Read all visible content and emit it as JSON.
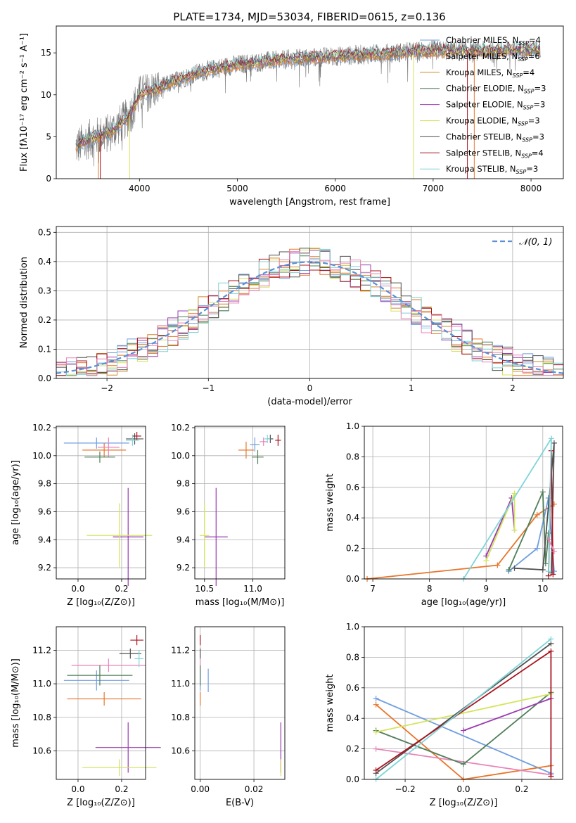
{
  "figure": {
    "title": "PLATE=1734, MJD=53034, FIBERID=0615, z=0.136"
  },
  "colors": {
    "Chabrier MILES": "#6f9ee0",
    "Salpeter MILES": "#e8752a",
    "Kroupa MILES": "#d2892c",
    "Chabrier ELODIE": "#4f7f58",
    "Salpeter ELODIE": "#9a3bb0",
    "Kroupa ELODIE": "#d5e45b",
    "Chabrier STELIB": "#505050",
    "Salpeter STELIB": "#a8141e",
    "Kroupa STELIB": "#7fd4d8",
    "pink": "#e882b8",
    "gaussian": "#5b8fd6"
  },
  "chart_data": [
    {
      "id": "spectrum",
      "type": "line",
      "title": "PLATE=1734, MJD=53034, FIBERID=0615, z=0.136",
      "xlabel": "wavelength [Angstrom, rest frame]",
      "ylabel": "Flux [fλ10⁻¹⁷ erg cm⁻² s⁻¹ A⁻¹]",
      "xlim": [
        3150,
        8330
      ],
      "ylim": [
        0,
        18.2
      ],
      "xticks": [
        4000,
        5000,
        6000,
        7000,
        8000
      ],
      "yticks": [
        0,
        5,
        10,
        15
      ],
      "grid": false,
      "legend_position": "right",
      "legend": [
        {
          "name": "Chabrier MILES, N",
          "sub": "SSP",
          "suffix": "=4",
          "color": "#6f9ee0"
        },
        {
          "name": "Salpeter MILES, N",
          "sub": "SSP",
          "suffix": "=6",
          "color": "#e8752a"
        },
        {
          "name": "Kroupa MILES, N",
          "sub": "SSP",
          "suffix": "=4",
          "color": "#d2892c"
        },
        {
          "name": "Chabrier ELODIE, N",
          "sub": "SSP",
          "suffix": "=3",
          "color": "#4f7f58"
        },
        {
          "name": "Salpeter ELODIE, N",
          "sub": "SSP",
          "suffix": "=3",
          "color": "#9a3bb0"
        },
        {
          "name": "Kroupa ELODIE, N",
          "sub": "SSP",
          "suffix": "=3",
          "color": "#d5e45b"
        },
        {
          "name": "Chabrier STELIB, N",
          "sub": "SSP",
          "suffix": "=3",
          "color": "#505050"
        },
        {
          "name": "Salpeter STELIB, N",
          "sub": "SSP",
          "suffix": "=4",
          "color": "#a8141e"
        },
        {
          "name": "Kroupa STELIB, N",
          "sub": "SSP",
          "suffix": "=3",
          "color": "#7fd4d8"
        }
      ],
      "continuum": [
        [
          3350,
          3.8
        ],
        [
          3500,
          4.8
        ],
        [
          3700,
          5.5
        ],
        [
          3900,
          7.5
        ],
        [
          4000,
          10.0
        ],
        [
          4200,
          10.8
        ],
        [
          4400,
          11.8
        ],
        [
          4600,
          12.6
        ],
        [
          4800,
          13.2
        ],
        [
          5000,
          13.6
        ],
        [
          5300,
          14.0
        ],
        [
          5600,
          14.3
        ],
        [
          6000,
          14.6
        ],
        [
          6300,
          14.8
        ],
        [
          6600,
          15.0
        ],
        [
          7000,
          15.3
        ],
        [
          7400,
          15.2
        ],
        [
          7700,
          15.3
        ],
        [
          8100,
          15.4
        ]
      ],
      "range_end": [
        {
          "color": "#e8752a",
          "start": 3580,
          "end": 7420
        },
        {
          "color": "#d5e45b",
          "start": 3900,
          "end": 6800
        },
        {
          "color": "#a8141e",
          "start": 3600,
          "end": 7350
        }
      ]
    },
    {
      "id": "residuals",
      "type": "histogram",
      "xlabel": "(data-model)/error",
      "ylabel": "Normed distribution",
      "xlim": [
        -2.5,
        2.5
      ],
      "ylim": [
        0,
        0.52
      ],
      "xticks": [
        -2,
        -1,
        0,
        1,
        2
      ],
      "yticks": [
        0.0,
        0.1,
        0.2,
        0.3,
        0.4,
        0.5
      ],
      "grid": true,
      "legend": "𝒩(0, 1)",
      "legend_position": "top-right",
      "bin_width": 0.1,
      "bin_start": -2.5,
      "series_colors": [
        "#6f9ee0",
        "#e8752a",
        "#d2892c",
        "#4f7f58",
        "#9a3bb0",
        "#d5e45b",
        "#505050",
        "#a8141e",
        "#7fd4d8",
        "#e882b8"
      ]
    },
    {
      "id": "age-vs-Z",
      "type": "errorbar",
      "xlabel": "Z [log₁₀(Z/Z⊙)]",
      "ylabel": "age  [log₁₀(age/yr)]",
      "xlim": [
        -0.1,
        0.31
      ],
      "ylim": [
        9.12,
        10.21
      ],
      "xticks": [
        0.0,
        0.2
      ],
      "yticks": [
        9.2,
        9.4,
        9.6,
        9.8,
        10.0,
        10.2
      ],
      "points": [
        {
          "x": 0.085,
          "y": 10.09,
          "xe": 0.15,
          "ye": 0.04,
          "color": "#6f9ee0"
        },
        {
          "x": 0.12,
          "y": 10.04,
          "xe": 0.1,
          "ye": 0.05,
          "color": "#e8752a"
        },
        {
          "x": 0.14,
          "y": 10.06,
          "xe": 0.05,
          "ye": 0.07,
          "color": "#e882b8"
        },
        {
          "x": 0.1,
          "y": 9.99,
          "xe": 0.07,
          "ye": 0.04,
          "color": "#4f7f58"
        },
        {
          "x": 0.23,
          "y": 9.42,
          "xe": 0.07,
          "ye": 0.35,
          "color": "#9a3bb0"
        },
        {
          "x": 0.19,
          "y": 9.43,
          "xe": 0.15,
          "ye": 0.23,
          "color": "#d5e45b"
        },
        {
          "x": 0.26,
          "y": 10.12,
          "xe": 0.04,
          "ye": 0.04,
          "color": "#505050"
        },
        {
          "x": 0.27,
          "y": 10.14,
          "xe": 0.02,
          "ye": 0.03,
          "color": "#a8141e"
        },
        {
          "x": 0.25,
          "y": 10.11,
          "xe": 0.03,
          "ye": 0.04,
          "color": "#7fd4d8"
        }
      ]
    },
    {
      "id": "age-vs-mass",
      "type": "errorbar",
      "xlabel": "mass [log₁₀(M/M⊙)]",
      "ylabel": "",
      "xlim": [
        10.4,
        11.33
      ],
      "ylim": [
        9.12,
        10.21
      ],
      "xticks": [
        10.5,
        11.0
      ],
      "yticks": [
        9.2,
        9.4,
        9.6,
        9.8,
        10.0,
        10.2
      ],
      "points": [
        {
          "x": 11.02,
          "y": 10.08,
          "xe": 0.05,
          "ye": 0.05,
          "color": "#6f9ee0"
        },
        {
          "x": 10.93,
          "y": 10.04,
          "xe": 0.08,
          "ye": 0.06,
          "color": "#e8752a"
        },
        {
          "x": 11.11,
          "y": 10.1,
          "xe": 0.04,
          "ye": 0.03,
          "color": "#e882b8"
        },
        {
          "x": 11.05,
          "y": 9.99,
          "xe": 0.06,
          "ye": 0.05,
          "color": "#4f7f58"
        },
        {
          "x": 10.62,
          "y": 9.42,
          "xe": 0.12,
          "ye": 0.35,
          "color": "#9a3bb0"
        },
        {
          "x": 10.5,
          "y": 9.43,
          "xe": 0.05,
          "ye": 0.23,
          "color": "#d5e45b"
        },
        {
          "x": 11.18,
          "y": 10.12,
          "xe": 0.03,
          "ye": 0.03,
          "color": "#505050"
        },
        {
          "x": 11.26,
          "y": 10.11,
          "xe": 0.03,
          "ye": 0.04,
          "color": "#a8141e"
        },
        {
          "x": 11.15,
          "y": 10.12,
          "xe": 0.03,
          "ye": 0.03,
          "color": "#7fd4d8"
        }
      ]
    },
    {
      "id": "massweight-vs-age",
      "type": "line",
      "xlabel": "age  [log₁₀(age/yr)]",
      "ylabel": "mass weight",
      "xlim": [
        6.85,
        10.35
      ],
      "ylim": [
        0,
        1.0
      ],
      "xticks": [
        7,
        8,
        9,
        10
      ],
      "yticks": [
        0.0,
        0.2,
        0.4,
        0.6,
        0.8,
        1.0
      ],
      "grid": true,
      "series": [
        {
          "color": "#e8752a",
          "points": [
            [
              6.9,
              0.0
            ],
            [
              9.2,
              0.09
            ],
            [
              9.9,
              0.42
            ],
            [
              10.2,
              0.49
            ]
          ]
        },
        {
          "color": "#9a3bb0",
          "points": [
            [
              9.0,
              0.15
            ],
            [
              9.45,
              0.53
            ],
            [
              9.5,
              0.32
            ]
          ]
        },
        {
          "color": "#d5e45b",
          "points": [
            [
              9.0,
              0.12
            ],
            [
              9.5,
              0.56
            ],
            [
              9.5,
              0.32
            ]
          ]
        },
        {
          "color": "#6f9ee0",
          "points": [
            [
              9.4,
              0.05
            ],
            [
              9.9,
              0.2
            ],
            [
              10.1,
              0.53
            ],
            [
              10.2,
              0.05
            ]
          ]
        },
        {
          "color": "#4f7f58",
          "points": [
            [
              9.4,
              0.06
            ],
            [
              10.0,
              0.57
            ],
            [
              10.05,
              0.1
            ],
            [
              10.1,
              0.3
            ]
          ]
        },
        {
          "color": "#505050",
          "points": [
            [
              9.5,
              0.07
            ],
            [
              10.0,
              0.06
            ],
            [
              10.2,
              0.89
            ],
            [
              10.15,
              0.04
            ]
          ]
        },
        {
          "color": "#a8141e",
          "points": [
            [
              10.1,
              0.02
            ],
            [
              10.15,
              0.84
            ],
            [
              10.18,
              0.03
            ]
          ]
        },
        {
          "color": "#7fd4d8",
          "points": [
            [
              8.6,
              0.0
            ],
            [
              10.15,
              0.92
            ],
            [
              10.1,
              0.05
            ]
          ]
        },
        {
          "color": "#e882b8",
          "points": [
            [
              10.1,
              0.26
            ],
            [
              10.2,
              0.18
            ]
          ]
        }
      ]
    },
    {
      "id": "mass-vs-Z",
      "type": "errorbar",
      "xlabel": "Z [log₁₀(Z/Z⊙)]",
      "ylabel": "mass [log₁₀(M/M⊙)]",
      "xlim": [
        -0.1,
        0.31
      ],
      "ylim": [
        10.43,
        11.34
      ],
      "xticks": [
        0.0,
        0.2
      ],
      "yticks": [
        10.6,
        10.8,
        11.0,
        11.2
      ],
      "points": [
        {
          "x": 0.085,
          "y": 11.02,
          "xe": 0.15,
          "ye": 0.06,
          "color": "#6f9ee0"
        },
        {
          "x": 0.12,
          "y": 10.91,
          "xe": 0.17,
          "ye": 0.04,
          "color": "#e8752a"
        },
        {
          "x": 0.14,
          "y": 11.11,
          "xe": 0.17,
          "ye": 0.04,
          "color": "#e882b8"
        },
        {
          "x": 0.1,
          "y": 11.05,
          "xe": 0.15,
          "ye": 0.06,
          "color": "#4f7f58"
        },
        {
          "x": 0.23,
          "y": 10.62,
          "xe": 0.15,
          "ye": 0.15,
          "color": "#9a3bb0"
        },
        {
          "x": 0.19,
          "y": 10.5,
          "xe": 0.17,
          "ye": 0.05,
          "color": "#d5e45b"
        },
        {
          "x": 0.24,
          "y": 11.18,
          "xe": 0.05,
          "ye": 0.03,
          "color": "#505050"
        },
        {
          "x": 0.27,
          "y": 11.26,
          "xe": 0.03,
          "ye": 0.03,
          "color": "#a8141e"
        },
        {
          "x": 0.28,
          "y": 11.15,
          "xe": 0.02,
          "ye": 0.05,
          "color": "#7fd4d8"
        }
      ]
    },
    {
      "id": "mass-vs-ebv",
      "type": "errorbar",
      "xlabel": "E(B-V)",
      "ylabel": "",
      "xlim": [
        -0.002,
        0.0315
      ],
      "ylim": [
        10.43,
        11.34
      ],
      "xticks": [
        0.0,
        0.02
      ],
      "yticks": [
        10.6,
        10.8,
        11.0,
        11.2
      ],
      "points": [
        {
          "x": 0.0,
          "y": 11.02,
          "xe": 0.0,
          "ye": 0.06,
          "color": "#6f9ee0"
        },
        {
          "x": 0.0,
          "y": 10.91,
          "xe": 0.0,
          "ye": 0.04,
          "color": "#e8752a"
        },
        {
          "x": 0.0,
          "y": 11.11,
          "xe": 0.0,
          "ye": 0.04,
          "color": "#e882b8"
        },
        {
          "x": 0.0,
          "y": 11.05,
          "xe": 0.0,
          "ye": 0.06,
          "color": "#4f7f58"
        },
        {
          "x": 0.03,
          "y": 10.62,
          "xe": 0.0,
          "ye": 0.15,
          "color": "#9a3bb0"
        },
        {
          "x": 0.03,
          "y": 10.5,
          "xe": 0.0,
          "ye": 0.05,
          "color": "#d5e45b"
        },
        {
          "x": 0.0,
          "y": 11.18,
          "xe": 0.0,
          "ye": 0.03,
          "color": "#505050"
        },
        {
          "x": 0.0,
          "y": 11.26,
          "xe": 0.0,
          "ye": 0.03,
          "color": "#a8141e"
        },
        {
          "x": 0.003,
          "y": 11.02,
          "xe": 0.0,
          "ye": 0.07,
          "color": "#6f9ee0"
        }
      ]
    },
    {
      "id": "massweight-vs-Z",
      "type": "line",
      "xlabel": "Z [log₁₀(Z/Z⊙)]",
      "ylabel": "mass weight",
      "xlim": [
        -0.34,
        0.34
      ],
      "ylim": [
        0,
        1.0
      ],
      "xticks": [
        -0.2,
        0.0,
        0.2
      ],
      "yticks": [
        0.0,
        0.2,
        0.4,
        0.6,
        0.8,
        1.0
      ],
      "grid": true,
      "series": [
        {
          "color": "#6f9ee0",
          "points": [
            [
              -0.3,
              0.53
            ],
            [
              0.3,
              0.04
            ]
          ]
        },
        {
          "color": "#e8752a",
          "points": [
            [
              -0.3,
              0.49
            ],
            [
              0.0,
              0.0
            ],
            [
              0.3,
              0.09
            ]
          ]
        },
        {
          "color": "#e882b8",
          "points": [
            [
              -0.3,
              0.2
            ],
            [
              0.3,
              0.03
            ]
          ]
        },
        {
          "color": "#4f7f58",
          "points": [
            [
              -0.3,
              0.32
            ],
            [
              0.0,
              0.1
            ],
            [
              0.3,
              0.57
            ]
          ]
        },
        {
          "color": "#9a3bb0",
          "points": [
            [
              0.0,
              0.32
            ],
            [
              0.3,
              0.53
            ]
          ]
        },
        {
          "color": "#d5e45b",
          "points": [
            [
              -0.3,
              0.31
            ],
            [
              0.3,
              0.56
            ]
          ]
        },
        {
          "color": "#505050",
          "points": [
            [
              -0.3,
              0.04
            ],
            [
              0.3,
              0.89
            ]
          ]
        },
        {
          "color": "#a8141e",
          "points": [
            [
              -0.3,
              0.06
            ],
            [
              0.3,
              0.84
            ],
            [
              0.3,
              0.02
            ]
          ]
        },
        {
          "color": "#7fd4d8",
          "points": [
            [
              -0.3,
              0.0
            ],
            [
              0.3,
              0.92
            ]
          ]
        }
      ]
    }
  ]
}
